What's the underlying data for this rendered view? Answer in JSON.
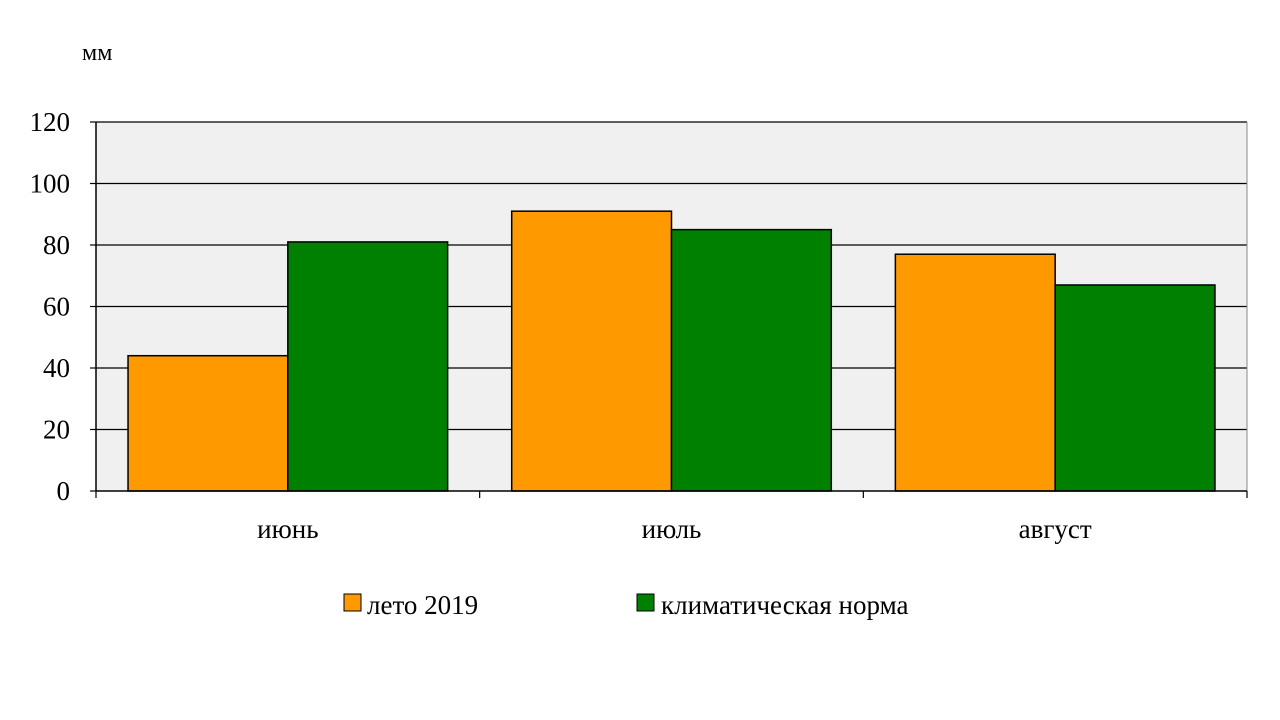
{
  "chart_data": {
    "type": "bar",
    "unit_label": "мм",
    "categories": [
      "июнь",
      "июль",
      "август"
    ],
    "series": [
      {
        "name": "лето 2019",
        "color": "#ff9900",
        "values": [
          44,
          91,
          77
        ]
      },
      {
        "name": "климатическая норма",
        "color": "#008000",
        "values": [
          81,
          85,
          67
        ]
      }
    ],
    "ylim": [
      0,
      120
    ],
    "yticks": [
      "0",
      "20",
      "40",
      "60",
      "80",
      "100",
      "120"
    ],
    "grid": true,
    "plot_background": "#f0f0f0",
    "legend_position": "bottom"
  }
}
